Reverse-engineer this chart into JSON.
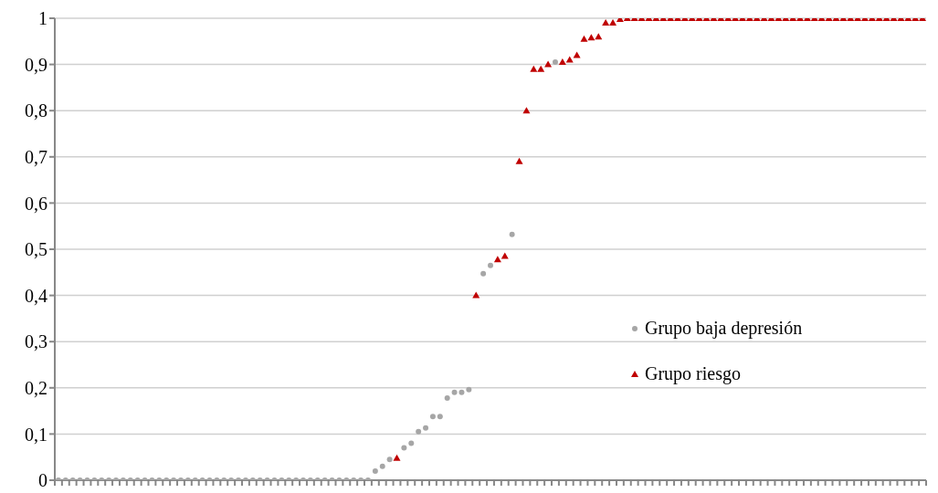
{
  "chart_data": {
    "type": "scatter",
    "categories": [
      null,
      null,
      null,
      null,
      null,
      null,
      null,
      null,
      null,
      null,
      null,
      null,
      null,
      null,
      null,
      null,
      null,
      null,
      null,
      null,
      null,
      null,
      null,
      null,
      null,
      null,
      null,
      null,
      null,
      null,
      null,
      null,
      null,
      null,
      null,
      null,
      null,
      null,
      null,
      null,
      null,
      null,
      null,
      null,
      null,
      null,
      null,
      null,
      null,
      null,
      null,
      null,
      null,
      null,
      null,
      null,
      null,
      null,
      null,
      null,
      null,
      null,
      null,
      null,
      null,
      null,
      null,
      null,
      null,
      null,
      null,
      null,
      null,
      null,
      null,
      null,
      null,
      null,
      null,
      null,
      null,
      null,
      null,
      null,
      null,
      null,
      null,
      null,
      null,
      null,
      null,
      null,
      null,
      null,
      null,
      null,
      null,
      null,
      null,
      null,
      null,
      null,
      null,
      null,
      null,
      null,
      null,
      null,
      null,
      null,
      null,
      null,
      null,
      null,
      null,
      null,
      null,
      null,
      null,
      null,
      null
    ],
    "series": [
      {
        "name": "Grupo baja depresión",
        "color": "#a6a6a6",
        "marker": "circle",
        "values": [
          0,
          0,
          0,
          0,
          0,
          0,
          0,
          0,
          0,
          0,
          0,
          0,
          0,
          0,
          0,
          0,
          0,
          0,
          0,
          0,
          0,
          0,
          0,
          0,
          0,
          0,
          0,
          0,
          0,
          0,
          0,
          0,
          0,
          0,
          0,
          0,
          0,
          0,
          0,
          0,
          0,
          0,
          0,
          0,
          0.02,
          0.03,
          0.045,
          null,
          0.07,
          0.08,
          0.105,
          0.113,
          0.138,
          0.138,
          0.178,
          0.19,
          0.19,
          0.196,
          null,
          0.447,
          0.465,
          null,
          null,
          0.532,
          null,
          null,
          null,
          null,
          null,
          0.905,
          null,
          null,
          null,
          null,
          null,
          null,
          null,
          null,
          null,
          null,
          null,
          null,
          null,
          null,
          null,
          null,
          null,
          null,
          null,
          null,
          null,
          null,
          null,
          null,
          null,
          null,
          null,
          null,
          null,
          null,
          null,
          null,
          null,
          null,
          null,
          null,
          null,
          null,
          null,
          null,
          null,
          null,
          null,
          null,
          null,
          null,
          null,
          null,
          null,
          null,
          null
        ]
      },
      {
        "name": "Grupo riesgo",
        "color": "#c00000",
        "marker": "triangle",
        "values": [
          null,
          null,
          null,
          null,
          null,
          null,
          null,
          null,
          null,
          null,
          null,
          null,
          null,
          null,
          null,
          null,
          null,
          null,
          null,
          null,
          null,
          null,
          null,
          null,
          null,
          null,
          null,
          null,
          null,
          null,
          null,
          null,
          null,
          null,
          null,
          null,
          null,
          null,
          null,
          null,
          null,
          null,
          null,
          null,
          null,
          null,
          null,
          0.048,
          null,
          null,
          null,
          null,
          null,
          null,
          null,
          null,
          null,
          null,
          0.4,
          null,
          null,
          0.478,
          0.485,
          null,
          0.69,
          0.8,
          0.89,
          0.89,
          0.9,
          null,
          0.905,
          0.91,
          0.92,
          0.955,
          0.958,
          0.96,
          0.99,
          0.99,
          0.998,
          1,
          1,
          1,
          1,
          1,
          1,
          1,
          1,
          1,
          1,
          1,
          1,
          1,
          1,
          1,
          1,
          1,
          1,
          1,
          1,
          1,
          1,
          1,
          1,
          1,
          1,
          1,
          1,
          1,
          1,
          1,
          1,
          1,
          1,
          1,
          1,
          1,
          1,
          1,
          1,
          1,
          1
        ]
      }
    ],
    "ylim": [
      0,
      1
    ],
    "yticks": [
      0,
      {
        "value": 0.1,
        "label": "0,1"
      },
      {
        "value": 0.2,
        "label": "0,2"
      },
      {
        "value": 0.3,
        "label": "0,3"
      },
      {
        "value": 0.4,
        "label": "0,4"
      },
      {
        "value": 0.5,
        "label": "0,5"
      },
      {
        "value": 0.6,
        "label": "0,6"
      },
      {
        "value": 0.7,
        "label": "0,7"
      },
      {
        "value": 0.8,
        "label": "0,8"
      },
      {
        "value": 0.9,
        "label": "0,9"
      },
      1
    ],
    "grid": "y",
    "legend": "right"
  }
}
